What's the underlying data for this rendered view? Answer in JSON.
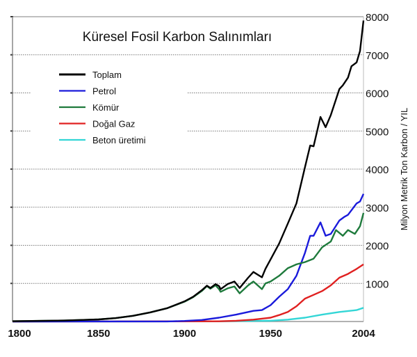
{
  "chart_data": {
    "type": "line",
    "title": "Küresel Fosil Karbon Salınımları",
    "xlabel": "",
    "ylabel": "Milyon Metrik Ton Karbon / YIL",
    "xlim": [
      1800,
      2004
    ],
    "ylim": [
      0,
      8000
    ],
    "x_ticks": [
      "1800",
      "1850",
      "1900",
      "1950",
      "2004"
    ],
    "x_tick_values": [
      1800,
      1850,
      1900,
      1950,
      2004
    ],
    "y_ticks": [
      "1000",
      "2000",
      "3000",
      "4000",
      "5000",
      "6000",
      "7000",
      "8000"
    ],
    "y_tick_values": [
      1000,
      2000,
      3000,
      4000,
      5000,
      6000,
      7000,
      8000
    ],
    "grid": true,
    "legend_position": "top-left",
    "series": [
      {
        "name": "Toplam",
        "color": "#000000",
        "x": [
          1800,
          1830,
          1850,
          1860,
          1870,
          1880,
          1890,
          1900,
          1905,
          1910,
          1913,
          1915,
          1918,
          1920,
          1921,
          1925,
          1929,
          1932,
          1937,
          1940,
          1945,
          1947,
          1950,
          1955,
          1960,
          1965,
          1970,
          1973,
          1975,
          1979,
          1982,
          1985,
          1990,
          1992,
          1995,
          1997,
          2000,
          2002,
          2004
        ],
        "y": [
          8,
          25,
          54,
          90,
          150,
          240,
          350,
          530,
          650,
          820,
          940,
          880,
          980,
          930,
          850,
          980,
          1050,
          880,
          1150,
          1300,
          1160,
          1380,
          1630,
          2050,
          2570,
          3100,
          4050,
          4620,
          4600,
          5370,
          5100,
          5420,
          6100,
          6200,
          6400,
          6700,
          6800,
          7100,
          7900
        ]
      },
      {
        "name": "Petrol",
        "color": "#1a1adb",
        "x": [
          1800,
          1890,
          1900,
          1910,
          1920,
          1930,
          1940,
          1945,
          1950,
          1955,
          1960,
          1965,
          1970,
          1973,
          1975,
          1979,
          1982,
          1985,
          1990,
          1993,
          1995,
          2000,
          2002,
          2004
        ],
        "y": [
          0,
          2,
          15,
          40,
          100,
          180,
          280,
          300,
          430,
          650,
          850,
          1200,
          1800,
          2250,
          2250,
          2600,
          2250,
          2300,
          2650,
          2750,
          2800,
          3100,
          3150,
          3350
        ]
      },
      {
        "name": "Kömür",
        "color": "#1e7a3c",
        "x": [
          1800,
          1830,
          1850,
          1860,
          1870,
          1880,
          1890,
          1900,
          1905,
          1910,
          1913,
          1915,
          1918,
          1920,
          1921,
          1925,
          1929,
          1932,
          1937,
          1940,
          1945,
          1947,
          1950,
          1955,
          1960,
          1965,
          1970,
          1975,
          1980,
          1985,
          1988,
          1992,
          1995,
          1999,
          2002,
          2004
        ],
        "y": [
          8,
          25,
          54,
          90,
          150,
          240,
          350,
          520,
          640,
          800,
          930,
          860,
          950,
          850,
          780,
          870,
          920,
          740,
          950,
          1050,
          850,
          1000,
          1050,
          1200,
          1400,
          1500,
          1560,
          1650,
          1950,
          2100,
          2400,
          2250,
          2400,
          2300,
          2500,
          2850
        ]
      },
      {
        "name": "Doğal Gaz",
        "color": "#e02020",
        "x": [
          1800,
          1920,
          1930,
          1940,
          1950,
          1955,
          1960,
          1965,
          1970,
          1975,
          1980,
          1985,
          1990,
          1995,
          2000,
          2004
        ],
        "y": [
          0,
          5,
          20,
          50,
          100,
          170,
          250,
          400,
          600,
          700,
          800,
          950,
          1150,
          1250,
          1380,
          1500
        ]
      },
      {
        "name": "Beton üretimi",
        "color": "#33d6d6",
        "x": [
          1800,
          1920,
          1950,
          1960,
          1970,
          1980,
          1990,
          2000,
          2004
        ],
        "y": [
          0,
          5,
          20,
          50,
          100,
          180,
          250,
          300,
          360
        ]
      }
    ]
  }
}
